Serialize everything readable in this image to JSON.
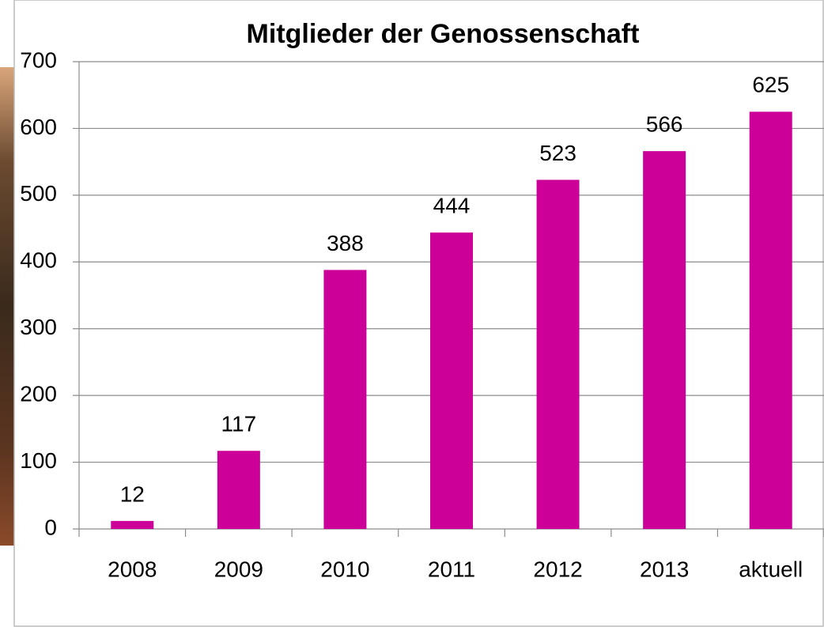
{
  "chart_data": {
    "type": "bar",
    "title": "Mitglieder der Genossenschaft",
    "categories": [
      "2008",
      "2009",
      "2010",
      "2011",
      "2012",
      "2013",
      "aktuell"
    ],
    "values": [
      12,
      117,
      388,
      444,
      523,
      566,
      625
    ],
    "color": "#cc0099",
    "ylim": [
      0,
      700
    ],
    "yticks": [
      0,
      100,
      200,
      300,
      400,
      500,
      600,
      700
    ],
    "grid": true
  }
}
